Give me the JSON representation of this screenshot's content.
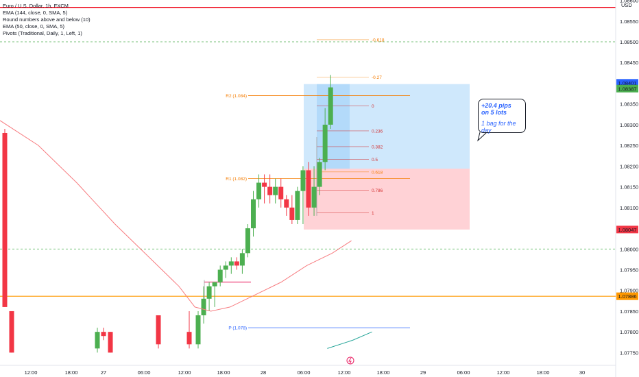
{
  "legend": {
    "symbol": "Euro / U.S. Dollar, 1h, FXCM",
    "indicators": [
      "EMA (144, close, 0, SMA, 5)",
      "Round numbers above and below (10)",
      "EMA (50, close, 0, SMA, 5)",
      "Pivots (Traditional, Daily, 1, Left, 1)"
    ]
  },
  "currency": "USD",
  "colors": {
    "up": "#4caf50",
    "down": "#f23645",
    "ema50": "#f77c80",
    "ema144": "#26a69a",
    "r_level": "#f57c00",
    "pivot_p": "#2962ff",
    "target_zone": "#bbdefb",
    "stop_zone": "#ffcdd2",
    "round_number": "#4caf50",
    "horizontal_line": "#ff9800"
  },
  "chart_data": {
    "type": "candlestick",
    "y_axis": {
      "ticks": [
        "1.08600",
        "1.08550",
        "1.08500",
        "1.08450",
        "1.08400",
        "1.08350",
        "1.08300",
        "1.08250",
        "1.08200",
        "1.08150",
        "1.08100",
        "1.08050",
        "1.08000",
        "1.07950",
        "1.07900",
        "1.07850",
        "1.07800",
        "1.07750"
      ],
      "ylim": [
        1.0775,
        1.0863
      ]
    },
    "x_axis": {
      "ticks": [
        "12:00",
        "18:00",
        "27",
        "06:00",
        "12:00",
        "18:00",
        "28",
        "06:00",
        "12:00",
        "18:00",
        "29",
        "06:00",
        "12:00",
        "18:00",
        "30"
      ]
    },
    "price_badges": [
      {
        "label": "1.08401",
        "value": 1.08401,
        "color": "#2962ff"
      },
      {
        "label": "1.08387",
        "value": 1.08387,
        "color": "#4caf50"
      },
      {
        "label": "1.08047",
        "value": 1.08047,
        "color": "#f23645"
      },
      {
        "label": "1.07886",
        "value": 1.07886,
        "color": "#ff9800"
      }
    ],
    "horizontal_lines": [
      {
        "price": 1.085,
        "style": "dashed",
        "kind": "round_number"
      },
      {
        "price": 1.08,
        "style": "dashed",
        "kind": "round_number"
      },
      {
        "price": 1.07886,
        "style": "solid",
        "kind": "horizontal_line"
      }
    ],
    "pivots": [
      {
        "label": "R2 (1.084)",
        "price": 1.0837
      },
      {
        "label": "R1 (1.082)",
        "price": 1.0817
      },
      {
        "label": "P (1.078)",
        "price": 1.0781
      }
    ],
    "fib_levels": [
      {
        "label": "-0.618",
        "price": 1.08505
      },
      {
        "label": "-0.27",
        "price": 1.08415
      },
      {
        "label": "0",
        "price": 1.08345
      },
      {
        "label": "0.236",
        "price": 1.08285
      },
      {
        "label": "0.382",
        "price": 1.08247
      },
      {
        "label": "0.5",
        "price": 1.08216
      },
      {
        "label": "0.618",
        "price": 1.08186
      },
      {
        "label": "0.786",
        "price": 1.08142
      },
      {
        "label": "1",
        "price": 1.08087
      }
    ],
    "position": {
      "entry": 1.08194,
      "target": 1.08398,
      "stop": 1.08047
    },
    "candles": [
      {
        "o": 1.0829,
        "h": 1.0829,
        "l": 1.0785,
        "c": 1.0785
      },
      {
        "o": 1.0785,
        "h": 1.0785,
        "l": 1.0776,
        "c": 1.0778
      },
      {
        "o": 1.0778,
        "h": 1.0782,
        "l": 1.0776,
        "c": 1.0782
      },
      {
        "o": 1.0782,
        "h": 1.0782,
        "l": 1.0777,
        "c": 1.0777
      },
      {
        "o": 1.0777,
        "h": 1.0785,
        "l": 1.0776,
        "c": 1.0784
      },
      {
        "o": 1.0784,
        "h": 1.0791,
        "l": 1.0782,
        "c": 1.0788
      },
      {
        "o": 1.0788,
        "h": 1.0792,
        "l": 1.0785,
        "c": 1.0791
      },
      {
        "o": 1.0791,
        "h": 1.0792,
        "l": 1.0786,
        "c": 1.0792
      },
      {
        "o": 1.0792,
        "h": 1.0796,
        "l": 1.0791,
        "c": 1.0795
      },
      {
        "o": 1.0795,
        "h": 1.0797,
        "l": 1.0793,
        "c": 1.0796
      },
      {
        "o": 1.0796,
        "h": 1.0798,
        "l": 1.0794,
        "c": 1.0797
      },
      {
        "o": 1.0797,
        "h": 1.0798,
        "l": 1.0795,
        "c": 1.0796
      },
      {
        "o": 1.0796,
        "h": 1.08,
        "l": 1.0794,
        "c": 1.0799
      },
      {
        "o": 1.0799,
        "h": 1.0806,
        "l": 1.0798,
        "c": 1.0805
      },
      {
        "o": 1.0805,
        "h": 1.0814,
        "l": 1.0803,
        "c": 1.0812
      },
      {
        "o": 1.0812,
        "h": 1.0818,
        "l": 1.081,
        "c": 1.0816
      },
      {
        "o": 1.0816,
        "h": 1.0818,
        "l": 1.0811,
        "c": 1.0815
      },
      {
        "o": 1.0815,
        "h": 1.0818,
        "l": 1.0811,
        "c": 1.0813
      },
      {
        "o": 1.0813,
        "h": 1.0817,
        "l": 1.0811,
        "c": 1.0815
      },
      {
        "o": 1.0815,
        "h": 1.0817,
        "l": 1.081,
        "c": 1.0812
      },
      {
        "o": 1.0812,
        "h": 1.0813,
        "l": 1.0808,
        "c": 1.081
      },
      {
        "o": 1.081,
        "h": 1.0813,
        "l": 1.0806,
        "c": 1.0807
      },
      {
        "o": 1.0807,
        "h": 1.0815,
        "l": 1.0806,
        "c": 1.0814
      },
      {
        "o": 1.0814,
        "h": 1.082,
        "l": 1.0806,
        "c": 1.0819
      },
      {
        "o": 1.0819,
        "h": 1.0821,
        "l": 1.0808,
        "c": 1.081
      },
      {
        "o": 1.081,
        "h": 1.082,
        "l": 1.0808,
        "c": 1.0815
      },
      {
        "o": 1.0815,
        "h": 1.0822,
        "l": 1.0813,
        "c": 1.0821
      },
      {
        "o": 1.0821,
        "h": 1.0834,
        "l": 1.0819,
        "c": 1.083
      },
      {
        "o": 1.083,
        "h": 1.0842,
        "l": 1.0829,
        "c": 1.0839
      }
    ],
    "ema50": [
      [
        0,
        1.0831
      ],
      [
        0.06,
        1.0825
      ],
      [
        0.12,
        1.0816
      ],
      [
        0.18,
        1.0806
      ],
      [
        0.24,
        1.0797
      ],
      [
        0.28,
        1.0791
      ],
      [
        0.305,
        1.0786
      ],
      [
        0.33,
        1.0785
      ],
      [
        0.36,
        1.0786
      ],
      [
        0.4,
        1.0789
      ],
      [
        0.44,
        1.0792
      ],
      [
        0.48,
        1.0796
      ],
      [
        0.52,
        1.0799
      ],
      [
        0.55,
        1.0802
      ]
    ],
    "ema144": [
      [
        0.48,
        1.0776
      ],
      [
        0.52,
        1.0778
      ],
      [
        0.55,
        1.078
      ]
    ]
  },
  "callout": {
    "line1": "+20.4 pips",
    "line2": "on 5 lots",
    "line3": "1 bag for the day"
  }
}
